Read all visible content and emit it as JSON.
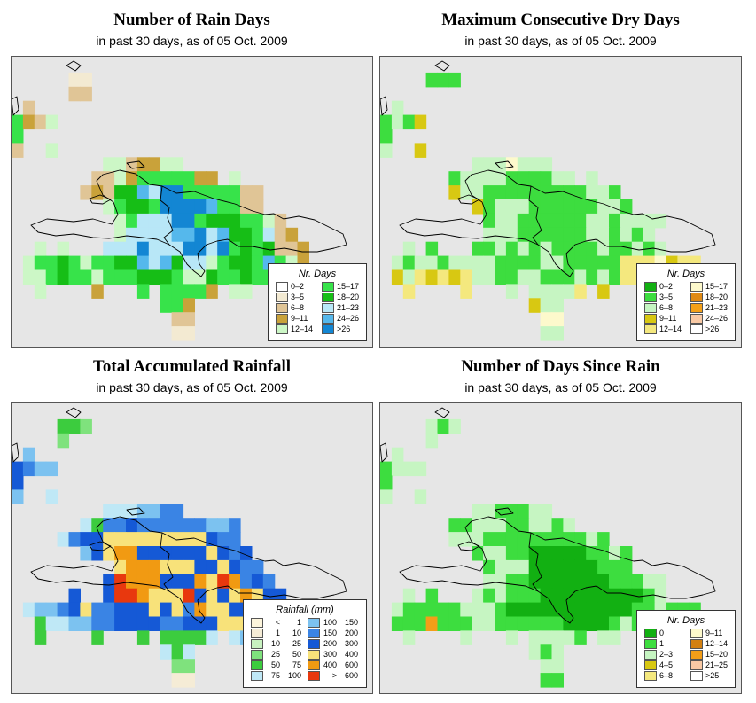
{
  "colors": {
    "background": "#e6e6e6",
    "outline": "#000000"
  },
  "chart_data": [
    {
      "type": "heatmap",
      "title": "Number of Rain Days",
      "subtitle": "in past 30 days, as of  05 Oct. 2009",
      "legend": {
        "title": "Nr. Days",
        "position": "bottom-right",
        "columns": 2,
        "labels_as_ranges": false,
        "classes": [
          {
            "label": "0–2",
            "color": "#ffffff"
          },
          {
            "label": "3–5",
            "color": "#f3ead2"
          },
          {
            "label": "6–8",
            "color": "#e0c596"
          },
          {
            "label": "9–11",
            "color": "#c9a23a"
          },
          {
            "label": "12–14",
            "color": "#ccf7c6"
          },
          {
            "label": "15–17",
            "color": "#37e34a"
          },
          {
            "label": "18–20",
            "color": "#16be16"
          },
          {
            "label": "21–23",
            "color": "#b8e7f7"
          },
          {
            "label": "24–26",
            "color": "#55b8ec"
          },
          {
            "label": ">26",
            "color": "#1386d3"
          }
        ]
      },
      "grid": [
        "..............................",
        ".....11.......................",
        ".....22.......................",
        ".2............................",
        "5324..........................",
        "5.............................",
        "2..4..........................",
        "........4423344...............",
        ".......22435555533.4..........",
        "......2326687995555522........",
        "........45665999985522........",
        ".........457779956665542......",
        ".........4777788978665723......",
        "..4.4...777977799795656223....",
        ".4556545566878677456658543....",
        ".4456554555666544655655444....",
        "..4....3...5.55553.44.........",
        ".............553...............",
        "..............22..............",
        "..............11.............."
      ]
    },
    {
      "type": "heatmap",
      "title": "Maximum Consecutive Dry Days",
      "subtitle": "in past 30 days, as of  05 Oct. 2009",
      "legend": {
        "title": "Nr. Days",
        "position": "bottom-right",
        "columns": 2,
        "labels_as_ranges": false,
        "classes": [
          {
            "label": "0–2",
            "color": "#12b012"
          },
          {
            "label": "3–5",
            "color": "#3ddd3f"
          },
          {
            "label": "6–8",
            "color": "#c6f5c2"
          },
          {
            "label": "9–11",
            "color": "#d8c812"
          },
          {
            "label": "12–14",
            "color": "#f4e87e"
          },
          {
            "label": "15–17",
            "color": "#fdf9cc"
          },
          {
            "label": "18–20",
            "color": "#e08a14"
          },
          {
            "label": "21–23",
            "color": "#f4a018"
          },
          {
            "label": "24–26",
            "color": "#f9c9a4"
          },
          {
            "label": ">26",
            "color": "#ffffff"
          }
        ]
      },
      "grid": [
        "..............................",
        "....111.......................",
        "..............................",
        ".2............................",
        "1213..........................",
        "1.............................",
        "2..3..........................",
        "........2225222...............",
        "......12222111122.2...........",
        "......322111111111221.........",
        "........31222111111221........",
        ".........1221111112212222.....",
        ".........222111111221212......",
        "..2.1...11212121111211212.....",
        ".212212222111122111114445344..",
        ".3243434221122111212144443....",
        "..4....4...2.22224.3..........",
        ".............322...............",
        "..............55..............",
        "..............22.............."
      ]
    },
    {
      "type": "heatmap",
      "title": "Total Accumulated Rainfall",
      "subtitle": "in past 30 days, as of  05 Oct. 2009",
      "legend": {
        "title": "Rainfall (mm)",
        "position": "bottom-right",
        "columns": 2,
        "labels_as_ranges": true,
        "classes": [
          {
            "label": "< 1",
            "lo": "<",
            "hi": "1",
            "color": "#fdf5dc"
          },
          {
            "label": "1  10",
            "lo": "1",
            "hi": "10",
            "color": "#f5ecd6"
          },
          {
            "label": "10  25",
            "lo": "10",
            "hi": "25",
            "color": "#c8f2c0"
          },
          {
            "label": "25  50",
            "lo": "25",
            "hi": "50",
            "color": "#7fe27d"
          },
          {
            "label": "50  75",
            "lo": "50",
            "hi": "75",
            "color": "#3ccc3e"
          },
          {
            "label": "75  100",
            "lo": "75",
            "hi": "100",
            "color": "#bfe8f6"
          },
          {
            "label": "100  150",
            "lo": "100",
            "hi": "150",
            "color": "#7cc2f0"
          },
          {
            "label": "150  200",
            "lo": "150",
            "hi": "200",
            "color": "#3a84e4"
          },
          {
            "label": "200  300",
            "lo": "200",
            "hi": "300",
            "color": "#1559d6"
          },
          {
            "label": "300  400",
            "lo": "300",
            "hi": "400",
            "color": "#f8e27a"
          },
          {
            "label": "400  600",
            "lo": "400",
            "hi": "600",
            "color": "#f19a12"
          },
          {
            "label": "> 600",
            "lo": ">",
            "hi": "600",
            "color": "#e8380e"
          }
        ]
      },
      "grid": [
        "..............................",
        "....443.......................",
        "....3.........................",
        ".6............................",
        "8766..........................",
        "8.............................",
        "6..5..........................",
        "........5556677...............",
        "......54778777777667..........",
        "....5788999999999877..........",
        "......689::8888889878.........",
        ".........9:::999889877........",
        "........8;:::888:9;:787.......",
        ".....8..8;;:999;8989:988......",
        ".566789778889897:9988987666...",
        "..45566778888778889998876.....",
        "..4....4...4.44445.56.........",
        ".............545...............",
        "..............33..............",
        "..............11.............."
      ]
    },
    {
      "type": "heatmap",
      "title": "Number of Days Since Rain",
      "subtitle": "in past 30 days, as of  05 Oct. 2009",
      "legend": {
        "title": "Nr. Days",
        "position": "bottom-right",
        "columns": 2,
        "labels_as_ranges": false,
        "classes": [
          {
            "label": "0",
            "color": "#12b012"
          },
          {
            "label": "1",
            "color": "#3ddd3f"
          },
          {
            "label": "2–3",
            "color": "#c6f5c2"
          },
          {
            "label": "4–5",
            "color": "#d8c812"
          },
          {
            "label": "6–8",
            "color": "#f4e87e"
          },
          {
            "label": "9–11",
            "color": "#fdf9cc"
          },
          {
            "label": "12–14",
            "color": "#d38010"
          },
          {
            "label": "15–20",
            "color": "#f49e18"
          },
          {
            "label": "21–25",
            "color": "#f9c9a4"
          },
          {
            "label": ">25",
            "color": "#ffffff"
          }
        ]
      },
      "grid": [
        "..............................",
        "....212.......................",
        "....2.........................",
        ".2............................",
        "1222..........................",
        "1.............................",
        "2..2..........................",
        "........2211122...............",
        "......11222112212.............",
        "......22211111111121..........",
        "........12211000001121........",
        ".........1222000000111........",
        ".........2211000000011122.....",
        "..2.1...21211100000000012.....",
        ".211111222100000000000112111..",
        ".1117111221111110000121211....",
        "..2....2...2.22221.22.........",
        ".............212...............",
        "..............22..............",
        "..............11.............."
      ]
    }
  ]
}
